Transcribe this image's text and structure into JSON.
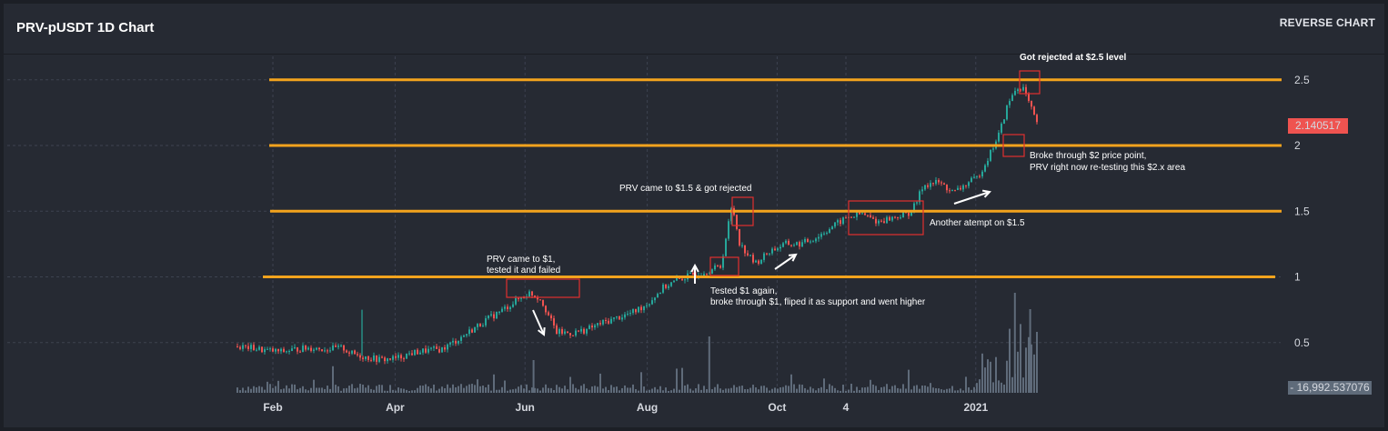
{
  "header": {
    "title": "PRV-pUSDT 1D Chart",
    "reverse_label": "REVERSE CHART"
  },
  "chart_data": {
    "type": "candlestick",
    "pair": "PRV-pUSDT",
    "interval": "1D",
    "ylim": [
      0,
      2.5
    ],
    "y_ticks": [
      "0.5",
      "1",
      "1.5",
      "2",
      "2.5"
    ],
    "y_tick_values": [
      0.5,
      1,
      1.5,
      2,
      2.5
    ],
    "x_ticks": [
      "Feb",
      "Apr",
      "Jun",
      "Aug",
      "Oct",
      "4",
      "2021"
    ],
    "x_tick_positions": [
      0.05,
      0.21,
      0.38,
      0.54,
      0.71,
      0.8,
      0.97
    ],
    "last_price": "2.140517",
    "last_volume": "16,992.537076",
    "grid": true,
    "horizontal_levels": [
      1,
      1.5,
      2,
      2.5
    ],
    "level_color": "#f2a31d",
    "up_color": "#26a69a",
    "down_color": "#ef5350",
    "price_badge_color": "#ef5350",
    "volume_color": "#5f6b7a",
    "price_path": [
      [
        0.0,
        0.47
      ],
      [
        0.02,
        0.46
      ],
      [
        0.04,
        0.44
      ],
      [
        0.06,
        0.43
      ],
      [
        0.08,
        0.45
      ],
      [
        0.1,
        0.46
      ],
      [
        0.12,
        0.45
      ],
      [
        0.14,
        0.46
      ],
      [
        0.15,
        0.42
      ],
      [
        0.17,
        0.39
      ],
      [
        0.19,
        0.37
      ],
      [
        0.21,
        0.38
      ],
      [
        0.23,
        0.42
      ],
      [
        0.25,
        0.44
      ],
      [
        0.27,
        0.45
      ],
      [
        0.29,
        0.52
      ],
      [
        0.31,
        0.6
      ],
      [
        0.33,
        0.68
      ],
      [
        0.35,
        0.75
      ],
      [
        0.37,
        0.83
      ],
      [
        0.385,
        0.88
      ],
      [
        0.4,
        0.83
      ],
      [
        0.41,
        0.7
      ],
      [
        0.42,
        0.58
      ],
      [
        0.44,
        0.57
      ],
      [
        0.46,
        0.6
      ],
      [
        0.48,
        0.65
      ],
      [
        0.5,
        0.69
      ],
      [
        0.52,
        0.73
      ],
      [
        0.54,
        0.8
      ],
      [
        0.56,
        0.92
      ],
      [
        0.58,
        0.98
      ],
      [
        0.6,
        1.02
      ],
      [
        0.62,
        1.05
      ],
      [
        0.635,
        1.08
      ],
      [
        0.645,
        1.4
      ],
      [
        0.65,
        1.55
      ],
      [
        0.66,
        1.25
      ],
      [
        0.68,
        1.1
      ],
      [
        0.7,
        1.2
      ],
      [
        0.72,
        1.25
      ],
      [
        0.74,
        1.25
      ],
      [
        0.76,
        1.3
      ],
      [
        0.78,
        1.38
      ],
      [
        0.8,
        1.45
      ],
      [
        0.82,
        1.48
      ],
      [
        0.84,
        1.42
      ],
      [
        0.86,
        1.45
      ],
      [
        0.88,
        1.48
      ],
      [
        0.89,
        1.55
      ],
      [
        0.9,
        1.7
      ],
      [
        0.92,
        1.72
      ],
      [
        0.94,
        1.64
      ],
      [
        0.96,
        1.72
      ],
      [
        0.97,
        1.75
      ],
      [
        0.98,
        1.85
      ],
      [
        0.99,
        1.97
      ],
      [
        1.0,
        2.1
      ],
      [
        1.01,
        2.3
      ],
      [
        1.02,
        2.42
      ],
      [
        1.03,
        2.45
      ],
      [
        1.04,
        2.3
      ],
      [
        1.05,
        2.14
      ]
    ],
    "annotations": [
      {
        "id": "rejected25",
        "text": "Got rejected at $2.5 level"
      },
      {
        "id": "broke2",
        "lines": [
          "Broke through $2 price point,",
          "PRV right now re-testing this $2.x area"
        ]
      },
      {
        "id": "came15",
        "text": "PRV came to $1.5 & got rejected"
      },
      {
        "id": "attempt15",
        "text": "Another atempt on $1.5"
      },
      {
        "id": "came1",
        "lines": [
          "PRV came to $1,",
          "tested it and failed"
        ]
      },
      {
        "id": "tested1",
        "lines": [
          "Tested $1 again,",
          "broke through $1, fliped it as support and went higher"
        ]
      }
    ]
  }
}
